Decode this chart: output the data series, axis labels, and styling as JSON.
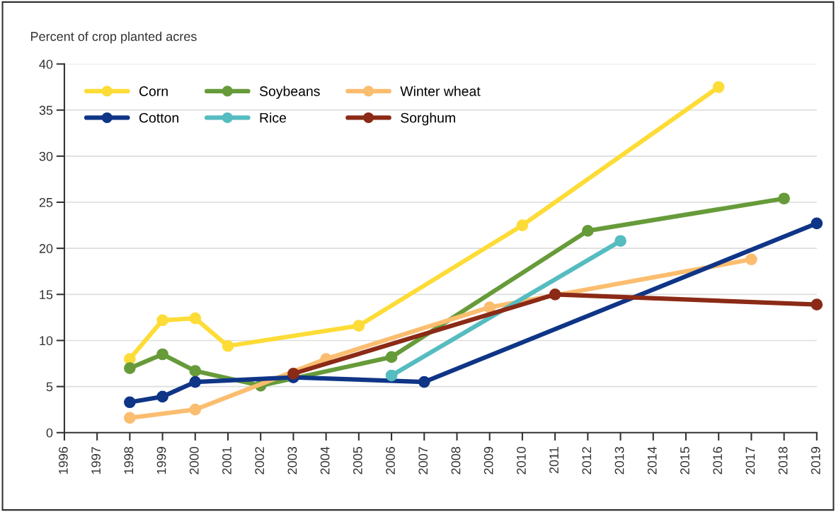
{
  "chart_data": {
    "type": "line",
    "ylabel": "Percent of crop planted acres",
    "xlim": [
      1996,
      2019
    ],
    "xticks": [
      1996,
      1997,
      1998,
      1999,
      2000,
      2001,
      2002,
      2003,
      2004,
      2005,
      2006,
      2007,
      2008,
      2009,
      2010,
      2011,
      2012,
      2013,
      2014,
      2015,
      2016,
      2017,
      2018,
      2019
    ],
    "ylim": [
      0,
      40
    ],
    "yticks": [
      0,
      5,
      10,
      15,
      20,
      25,
      30,
      35,
      40
    ],
    "grid": "y",
    "legend": "top left",
    "marker": "circle",
    "line_style": "solid",
    "series": [
      {
        "name": "Corn",
        "color": "#fddc37",
        "x": [
          1998,
          1999,
          2000,
          2001,
          2005,
          2010,
          2016
        ],
        "values": [
          8.0,
          12.2,
          12.4,
          9.4,
          11.6,
          22.5,
          37.5
        ]
      },
      {
        "name": "Soybeans",
        "color": "#679b3a",
        "x": [
          1998,
          1999,
          2000,
          2002,
          2006,
          2012,
          2018
        ],
        "values": [
          7.0,
          8.5,
          6.7,
          5.1,
          8.2,
          21.9,
          25.4
        ]
      },
      {
        "name": "Winter wheat",
        "color": "#fbbd6f",
        "x": [
          1998,
          2000,
          2004,
          2009,
          2017
        ],
        "values": [
          1.6,
          2.5,
          8.0,
          13.6,
          18.8
        ]
      },
      {
        "name": "Cotton",
        "color": "#0f3587",
        "x": [
          1998,
          1999,
          2000,
          2003,
          2007,
          2019
        ],
        "values": [
          3.3,
          3.9,
          5.5,
          6.0,
          5.5,
          22.7
        ]
      },
      {
        "name": "Rice",
        "color": "#55bcc0",
        "x": [
          2006,
          2013
        ],
        "values": [
          6.2,
          20.8
        ]
      },
      {
        "name": "Sorghum",
        "color": "#8b2a16",
        "x": [
          2003,
          2011,
          2019
        ],
        "values": [
          6.4,
          15.0,
          13.9
        ]
      }
    ]
  }
}
